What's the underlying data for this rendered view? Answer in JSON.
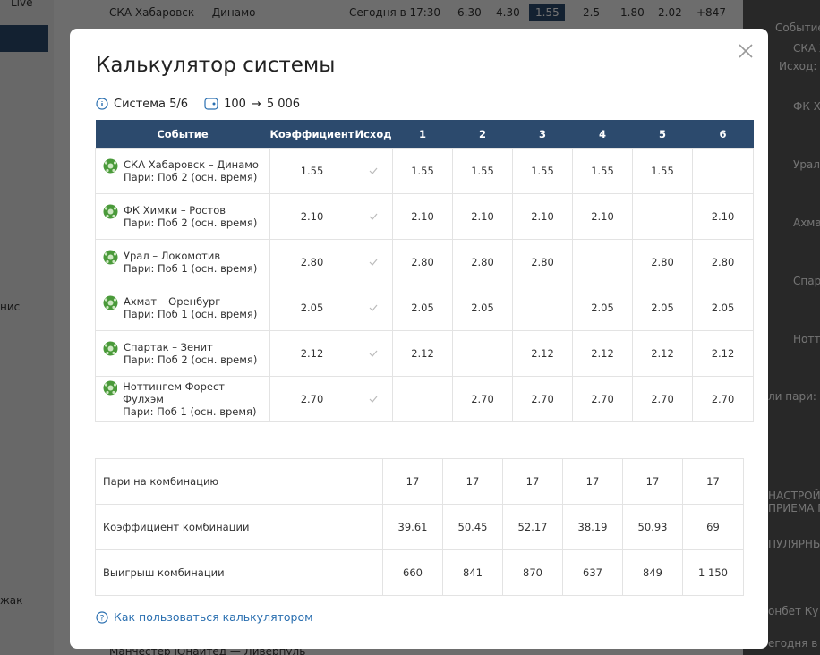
{
  "background": [
    "Live",
    "СКА Хабаровск — Динамо",
    "Сегодня в 17:30",
    "6.30",
    "4.30",
    "1.55",
    "2.5",
    "1.80",
    "2.02",
    "+847",
    "нис",
    "жак",
    "Событие",
    "СКА Х",
    "Исход: П",
    "ФК Хи",
    "Урал",
    "Ахмат",
    "Спар",
    "Ноттг",
    "ли пари: С",
    "НАСТРОЙК",
    "ПРИЕМА П",
    "ПУЛЯРНЫ",
    "онбет Ку",
    "егодня в",
    "Манчестер Юнайтед — Ливерпуль"
  ],
  "header": {
    "title": "Калькулятор системы"
  },
  "info": {
    "system": "Система 5/6",
    "stake": "100",
    "arrow": "→",
    "payout": "5 006"
  },
  "table": {
    "columns": [
      "Событие",
      "Коэффициент",
      "Исход",
      "1",
      "2",
      "3",
      "4",
      "5",
      "6"
    ],
    "rows": [
      {
        "event": "СКА Хабаровск – Динамо",
        "market": "Пари: Поб 2 (осн. время)",
        "coef": "1.55",
        "combos": [
          "1.55",
          "1.55",
          "1.55",
          "1.55",
          "1.55",
          null
        ]
      },
      {
        "event": "ФК Химки – Ростов",
        "market": "Пари: Поб 2 (осн. время)",
        "coef": "2.10",
        "combos": [
          "2.10",
          "2.10",
          "2.10",
          "2.10",
          null,
          "2.10"
        ]
      },
      {
        "event": "Урал – Локомотив",
        "market": "Пари: Поб 1 (осн. время)",
        "coef": "2.80",
        "combos": [
          "2.80",
          "2.80",
          "2.80",
          null,
          "2.80",
          "2.80"
        ]
      },
      {
        "event": "Ахмат – Оренбург",
        "market": "Пари: Поб 1 (осн. время)",
        "coef": "2.05",
        "combos": [
          "2.05",
          "2.05",
          null,
          "2.05",
          "2.05",
          "2.05"
        ]
      },
      {
        "event": "Спартак – Зенит",
        "market": "Пари: Поб 2 (осн. время)",
        "coef": "2.12",
        "combos": [
          "2.12",
          null,
          "2.12",
          "2.12",
          "2.12",
          "2.12"
        ]
      },
      {
        "event": "Ноттингем Форест – Фулхэм",
        "market": "Пари: Поб 1 (осн. время)",
        "coef": "2.70",
        "combos": [
          null,
          "2.70",
          "2.70",
          "2.70",
          "2.70",
          "2.70"
        ]
      }
    ]
  },
  "summary": [
    {
      "label": "Пари на комбинацию",
      "values": [
        "17",
        "17",
        "17",
        "17",
        "17",
        "17"
      ]
    },
    {
      "label": "Коэффициент комбинации",
      "values": [
        "39.61",
        "50.45",
        "52.17",
        "38.19",
        "50.93",
        "69"
      ]
    },
    {
      "label": "Выигрыш комбинации",
      "values": [
        "660",
        "841",
        "870",
        "637",
        "849",
        "1 150"
      ]
    }
  ],
  "footer": {
    "help_link": "Как пользоваться калькулятором"
  }
}
